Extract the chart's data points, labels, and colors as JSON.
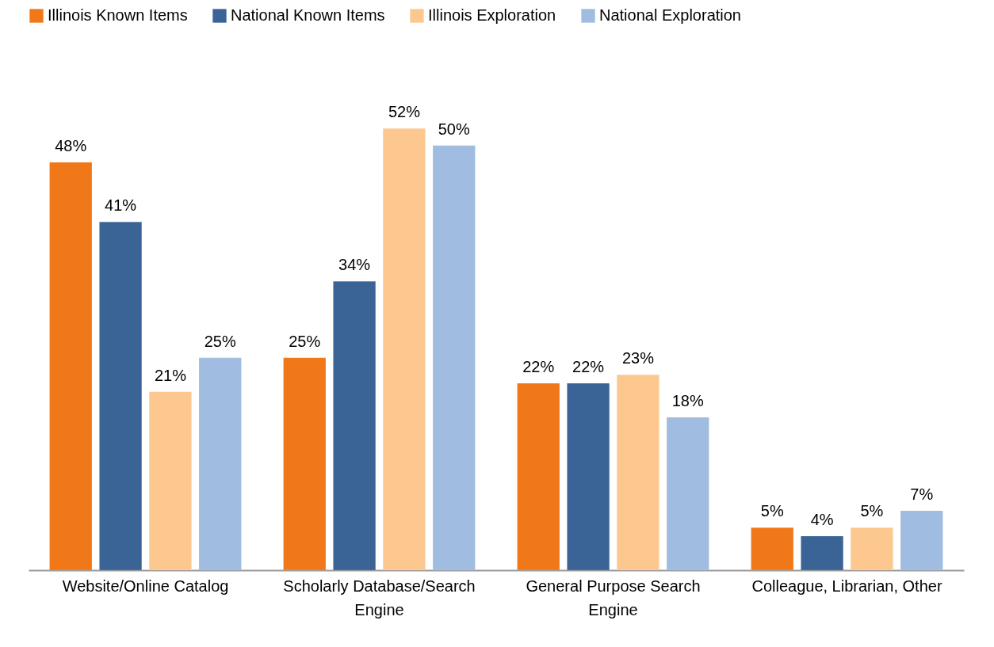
{
  "chart_data": {
    "type": "bar",
    "categories": [
      "Website/Online Catalog",
      "Scholarly Database/Search Engine",
      "General Purpose Search Engine",
      "Colleague, Librarian, Other"
    ],
    "series": [
      {
        "name": "Illinois Known Items",
        "color": "#f07818",
        "values": [
          48,
          25,
          22,
          5
        ],
        "value_labels": [
          "48%",
          "25%",
          "22%",
          "5%"
        ]
      },
      {
        "name": "National Known Items",
        "color": "#3a6496",
        "values": [
          41,
          34,
          22,
          4
        ],
        "value_labels": [
          "41%",
          "34%",
          "22%",
          "4%"
        ]
      },
      {
        "name": "Illinois Exploration",
        "color": "#fcc890",
        "values": [
          21,
          52,
          23,
          5
        ],
        "value_labels": [
          "21%",
          "52%",
          "23%",
          "5%"
        ]
      },
      {
        "name": "National Exploration",
        "color": "#a0bce0",
        "values": [
          25,
          50,
          18,
          7
        ],
        "value_labels": [
          "25%",
          "50%",
          "18%",
          "7%"
        ]
      }
    ],
    "legend": "top",
    "grid": false,
    "tick_labels": "x"
  }
}
